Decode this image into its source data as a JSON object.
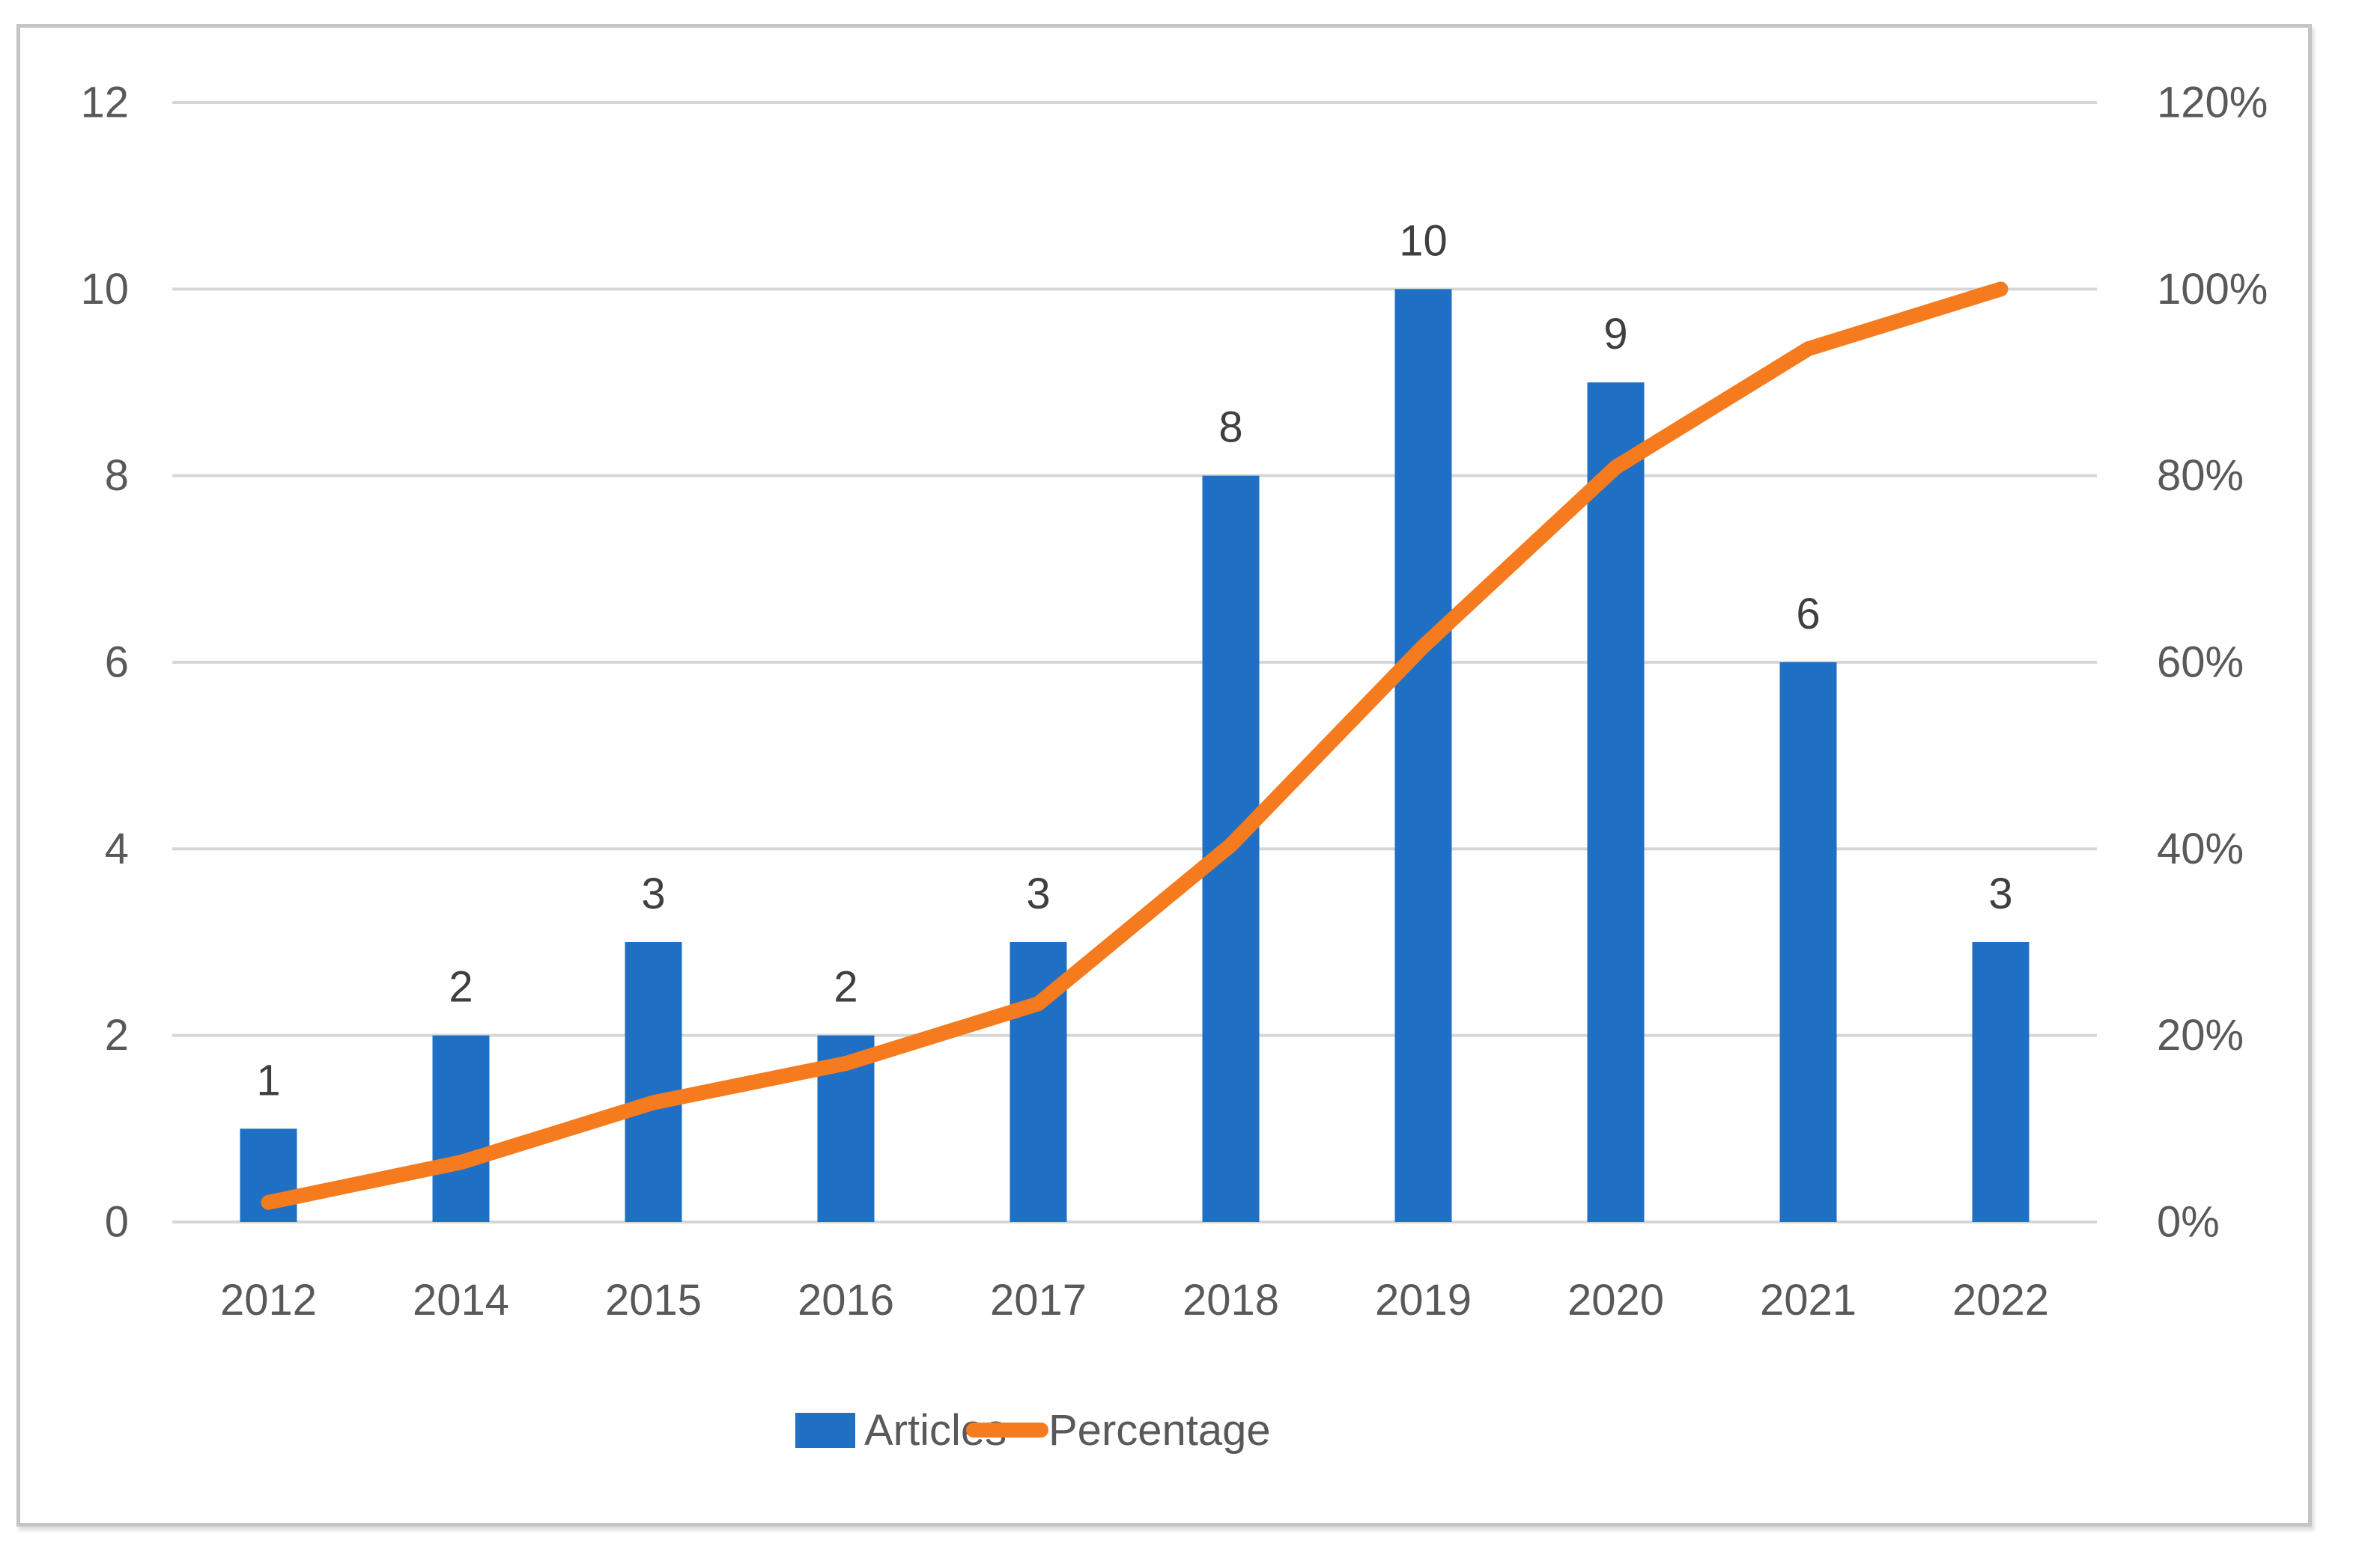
{
  "chart_data": {
    "type": "bar",
    "combo": "bar+line",
    "title": "",
    "xlabel": "",
    "ylabel_left": "",
    "ylabel_right": "",
    "categories": [
      "2012",
      "2014",
      "2015",
      "2016",
      "2017",
      "2018",
      "2019",
      "2020",
      "2021",
      "2022"
    ],
    "series": [
      {
        "name": "Articles",
        "type": "bar",
        "axis": "left",
        "color": "#1f6fc4",
        "values": [
          1,
          2,
          3,
          2,
          3,
          8,
          10,
          9,
          6,
          3
        ],
        "data_labels": [
          "1",
          "2",
          "3",
          "2",
          "3",
          "8",
          "10",
          "9",
          "6",
          "3"
        ]
      },
      {
        "name": "Percentage",
        "type": "line",
        "axis": "right",
        "color": "#f67b1e",
        "values_percent": [
          2.1,
          6.4,
          12.8,
          17.0,
          23.4,
          40.4,
          61.7,
          80.9,
          93.6,
          100.0
        ]
      }
    ],
    "left_axis": {
      "min": 0,
      "max": 12,
      "tick_step": 2,
      "tick_labels": [
        "0",
        "2",
        "4",
        "6",
        "8",
        "10",
        "12"
      ]
    },
    "right_axis": {
      "min_percent": 0,
      "max_percent": 120,
      "tick_step_percent": 20,
      "tick_labels": [
        "0%",
        "20%",
        "40%",
        "60%",
        "80%",
        "100%",
        "120%"
      ]
    },
    "legend": {
      "position": "bottom",
      "entries": [
        "Articles",
        "Percentage"
      ]
    },
    "grid": true
  },
  "colors": {
    "bar": "#1f6fc4",
    "line": "#f67b1e",
    "gridline": "#d6d6d6",
    "axis_text": "#595959",
    "data_label_text": "#3f3f3f",
    "frame_border": "#c5c5c5",
    "background": "#ffffff"
  }
}
